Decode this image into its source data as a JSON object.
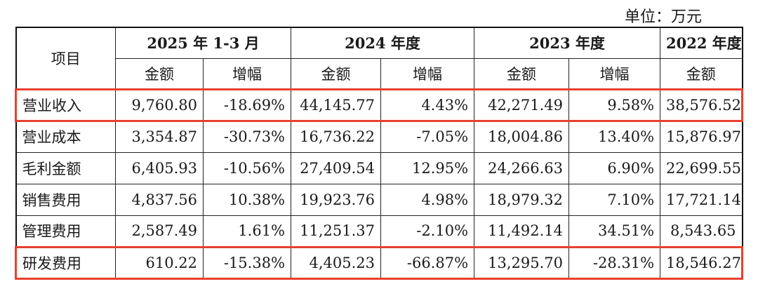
{
  "unit_label": "单位：万元",
  "header": {
    "item_label": "项目",
    "periods": [
      "2025 年 1-3 月",
      "2024 年度",
      "2023 年度",
      "2022 年度"
    ],
    "amount_label": "金额",
    "growth_label": "增幅"
  },
  "rows": [
    {
      "label": "营业收入",
      "values": [
        "9,760.80",
        "-18.69%",
        "44,145.77",
        "4.43%",
        "42,271.49",
        "9.58%",
        "38,576.52"
      ],
      "highlighted": true
    },
    {
      "label": "营业成本",
      "values": [
        "3,354.87",
        "-30.73%",
        "16,736.22",
        "-7.05%",
        "18,004.86",
        "13.40%",
        "15,876.97"
      ],
      "highlighted": false
    },
    {
      "label": "毛利金额",
      "values": [
        "6,405.93",
        "-10.56%",
        "27,409.54",
        "12.95%",
        "24,266.63",
        "6.90%",
        "22,699.55"
      ],
      "highlighted": false
    },
    {
      "label": "销售费用",
      "values": [
        "4,837.56",
        "10.38%",
        "19,923.76",
        "4.98%",
        "18,979.32",
        "7.10%",
        "17,721.14"
      ],
      "highlighted": false
    },
    {
      "label": "管理费用",
      "values": [
        "2,587.49",
        "1.61%",
        "11,251.37",
        "-2.10%",
        "11,492.14",
        "34.51%",
        "8,543.65"
      ],
      "highlighted": false
    },
    {
      "label": "研发费用",
      "values": [
        "610.22",
        "-15.38%",
        "4,405.23",
        "-66.87%",
        "13,295.70",
        "-28.31%",
        "18,546.27"
      ],
      "highlighted": true
    }
  ],
  "highlight_color": "#e8402f"
}
